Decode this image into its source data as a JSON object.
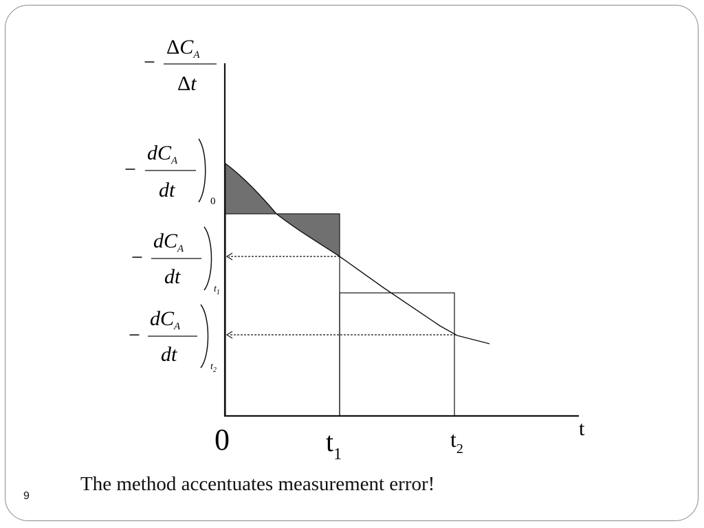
{
  "slide": {
    "caption": "The method accentuates measurement error!",
    "number": "9"
  },
  "diagram": {
    "y_axis_label": {
      "minus": "−",
      "numerator_delta": "Δ",
      "numerator_var": "C",
      "numerator_sub": "A",
      "denominator_delta": "Δ",
      "denominator_var": "t"
    },
    "x_axis_label": "t",
    "x_ticks": {
      "origin": "0",
      "t1_main": "t",
      "t1_sub": "1",
      "t2_main": "t",
      "t2_sub": "2"
    },
    "derivative_labels": [
      {
        "minus": "−",
        "numerator": "dC",
        "num_sub": "A",
        "denominator": "dt",
        "eval_main": "0",
        "eval_sub": ""
      },
      {
        "minus": "−",
        "numerator": "dC",
        "num_sub": "A",
        "denominator": "dt",
        "eval_main": "t",
        "eval_sub": "1"
      },
      {
        "minus": "−",
        "numerator": "dC",
        "num_sub": "A",
        "denominator": "dt",
        "eval_main": "t",
        "eval_sub": "2"
      }
    ],
    "colors": {
      "axis": "#111111",
      "shading": "#707070",
      "curve": "#111111"
    }
  }
}
